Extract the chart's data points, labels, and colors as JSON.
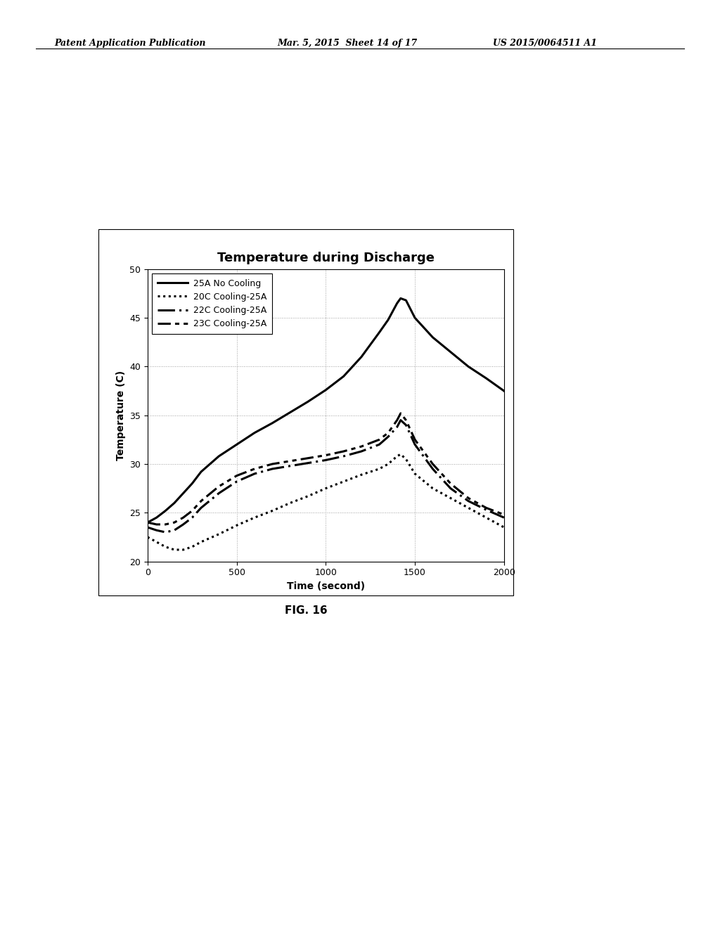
{
  "title": "Temperature during Discharge",
  "xlabel": "Time (second)",
  "ylabel": "Temperature (C)",
  "xlim": [
    0,
    2000
  ],
  "ylim": [
    20,
    50
  ],
  "xticks": [
    0,
    500,
    1000,
    1500,
    2000
  ],
  "yticks": [
    20,
    25,
    30,
    35,
    40,
    45,
    50
  ],
  "header_left": "Patent Application Publication",
  "header_center": "Mar. 5, 2015  Sheet 14 of 17",
  "header_right": "US 2015/0064511 A1",
  "fig_label": "FIG. 16",
  "series": {
    "no_cooling": {
      "label": "25A No Cooling",
      "linewidth": 2.2,
      "color": "#000000",
      "x": [
        0,
        50,
        100,
        150,
        200,
        250,
        300,
        400,
        500,
        600,
        700,
        800,
        900,
        1000,
        1100,
        1200,
        1300,
        1350,
        1400,
        1420,
        1450,
        1500,
        1600,
        1700,
        1800,
        1900,
        2000
      ],
      "y": [
        24.0,
        24.5,
        25.2,
        26.0,
        27.0,
        28.0,
        29.2,
        30.8,
        32.0,
        33.2,
        34.2,
        35.3,
        36.4,
        37.6,
        39.0,
        41.0,
        43.5,
        44.8,
        46.5,
        47.0,
        46.8,
        45.0,
        43.0,
        41.5,
        40.0,
        38.8,
        37.5
      ]
    },
    "cooling_20": {
      "label": "20C Cooling-25A",
      "linewidth": 2.2,
      "color": "#000000",
      "x": [
        0,
        50,
        100,
        150,
        200,
        250,
        300,
        400,
        500,
        600,
        700,
        800,
        900,
        1000,
        1100,
        1200,
        1300,
        1350,
        1400,
        1420,
        1450,
        1500,
        1600,
        1700,
        1800,
        1900,
        2000
      ],
      "y": [
        22.5,
        22.0,
        21.5,
        21.2,
        21.2,
        21.5,
        22.0,
        22.8,
        23.7,
        24.5,
        25.2,
        26.0,
        26.7,
        27.5,
        28.2,
        28.9,
        29.5,
        30.0,
        30.8,
        31.0,
        30.5,
        29.0,
        27.5,
        26.5,
        25.5,
        24.5,
        23.5
      ]
    },
    "cooling_22": {
      "label": "22C Cooling-25A",
      "linewidth": 2.2,
      "color": "#000000",
      "x": [
        0,
        50,
        100,
        150,
        200,
        250,
        300,
        400,
        500,
        600,
        700,
        800,
        900,
        1000,
        1100,
        1200,
        1300,
        1350,
        1400,
        1420,
        1450,
        1500,
        1600,
        1700,
        1800,
        1900,
        2000
      ],
      "y": [
        23.5,
        23.2,
        23.0,
        23.2,
        23.8,
        24.5,
        25.5,
        27.0,
        28.2,
        29.0,
        29.5,
        29.8,
        30.1,
        30.4,
        30.8,
        31.3,
        32.0,
        32.8,
        33.8,
        34.5,
        34.0,
        32.0,
        29.5,
        27.5,
        26.2,
        25.3,
        24.5
      ]
    },
    "cooling_23": {
      "label": "23C Cooling-25A",
      "linewidth": 2.2,
      "color": "#000000",
      "x": [
        0,
        50,
        100,
        150,
        200,
        250,
        300,
        400,
        500,
        600,
        700,
        800,
        900,
        1000,
        1100,
        1200,
        1300,
        1350,
        1400,
        1420,
        1450,
        1500,
        1600,
        1700,
        1800,
        1900,
        2000
      ],
      "y": [
        24.0,
        23.8,
        23.8,
        24.0,
        24.5,
        25.2,
        26.2,
        27.7,
        28.8,
        29.5,
        30.0,
        30.3,
        30.6,
        30.9,
        31.3,
        31.8,
        32.5,
        33.2,
        34.5,
        35.2,
        34.5,
        32.5,
        30.0,
        28.0,
        26.5,
        25.5,
        24.8
      ]
    }
  },
  "background_color": "#ffffff",
  "plot_bg_color": "#ffffff",
  "grid_color": "#888888"
}
